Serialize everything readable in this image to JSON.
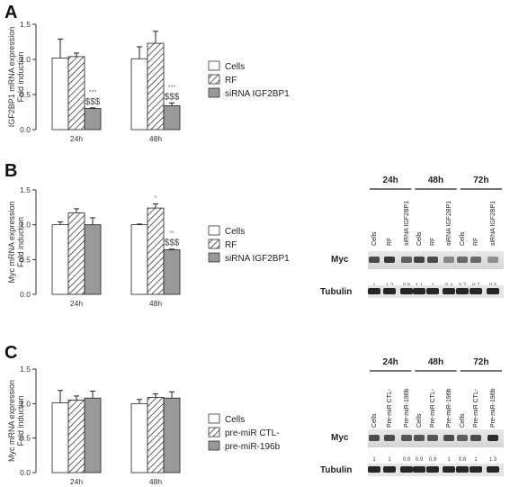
{
  "colors": {
    "cells": "#ffffff",
    "rf": "hatch",
    "treat": "#999999",
    "axis": "#333333"
  },
  "chart_data": [
    {
      "panel": "A",
      "type": "bar",
      "ylabel": [
        "IGF2BP1 mRNA expression",
        "Fold induction"
      ],
      "ylim": [
        0,
        1.5
      ],
      "yticks": [
        "0.0",
        "0.5",
        "1.0",
        "1.5"
      ],
      "categories": [
        "24h",
        "48h"
      ],
      "series": [
        {
          "name": "Cells",
          "values": [
            1.02,
            1.01
          ],
          "errors": [
            0.27,
            0.17
          ]
        },
        {
          "name": "RF",
          "values": [
            1.04,
            1.23
          ],
          "errors": [
            0.05,
            0.17
          ]
        },
        {
          "name": "siRNA IGF2BP1",
          "values": [
            0.3,
            0.34
          ],
          "errors": [
            0.01,
            0.04
          ]
        }
      ],
      "annotations": [
        {
          "category": 0,
          "series": 2,
          "lines": [
            "°°°",
            "$$$"
          ]
        },
        {
          "category": 1,
          "series": 2,
          "lines": [
            "°°°",
            "$$$"
          ]
        }
      ]
    },
    {
      "panel": "B",
      "type": "bar",
      "ylabel": [
        "Myc mRNA expression",
        "Fold induction"
      ],
      "ylim": [
        0,
        1.5
      ],
      "yticks": [
        "0.0",
        "0.5",
        "1.0",
        "1.5"
      ],
      "categories": [
        "24h",
        "48h"
      ],
      "series": [
        {
          "name": "Cells",
          "values": [
            1.0,
            1.0
          ],
          "errors": [
            0.04,
            0.01
          ]
        },
        {
          "name": "RF",
          "values": [
            1.17,
            1.24
          ],
          "errors": [
            0.06,
            0.06
          ]
        },
        {
          "name": "siRNA IGF2BP1",
          "values": [
            1.0,
            0.64
          ],
          "errors": [
            0.1,
            0.01
          ]
        }
      ],
      "annotations": [
        {
          "category": 1,
          "series": 1,
          "lines": [
            "°"
          ]
        },
        {
          "category": 1,
          "series": 2,
          "lines": [
            "°°",
            "$$$"
          ]
        }
      ]
    },
    {
      "panel": "C",
      "type": "bar",
      "ylabel": [
        "Myc mRNA expression",
        "Fold induction"
      ],
      "ylim": [
        0,
        1.5
      ],
      "yticks": [
        "0.0",
        "0.5",
        "1.0",
        "1.5"
      ],
      "categories": [
        "24h",
        "48h"
      ],
      "series": [
        {
          "name": "Cells",
          "values": [
            1.01,
            1.0
          ],
          "errors": [
            0.18,
            0.06
          ]
        },
        {
          "name": "pre-miR CTL-",
          "values": [
            1.05,
            1.09
          ],
          "errors": [
            0.06,
            0.05
          ]
        },
        {
          "name": "pre-miR-196b",
          "values": [
            1.08,
            1.08
          ],
          "errors": [
            0.1,
            0.09
          ]
        }
      ],
      "annotations": []
    }
  ],
  "blots": [
    {
      "panel": "B",
      "timepoints": [
        "24h",
        "48h",
        "72h"
      ],
      "lanes": [
        "Cells",
        "RF",
        "siRNA IGF2BP1"
      ],
      "rows": [
        {
          "protein": "Myc",
          "quant": [
            "1",
            "1.2",
            "0.8",
            "1.1",
            "1",
            "0.4",
            "0.7",
            "0.7",
            "0.3"
          ]
        },
        {
          "protein": "Tubulin",
          "quant": []
        }
      ]
    },
    {
      "panel": "C",
      "timepoints": [
        "24h",
        "48h",
        "72h"
      ],
      "lanes": [
        "Cells",
        "Pre-miR CTL-",
        "Pre-miR-196b"
      ],
      "rows": [
        {
          "protein": "Myc",
          "quant": [
            "1",
            "1",
            "0.9",
            "0.9",
            "0.9",
            "1",
            "0.8",
            "1",
            "1.3"
          ]
        },
        {
          "protein": "Tubulin",
          "quant": []
        }
      ]
    }
  ]
}
